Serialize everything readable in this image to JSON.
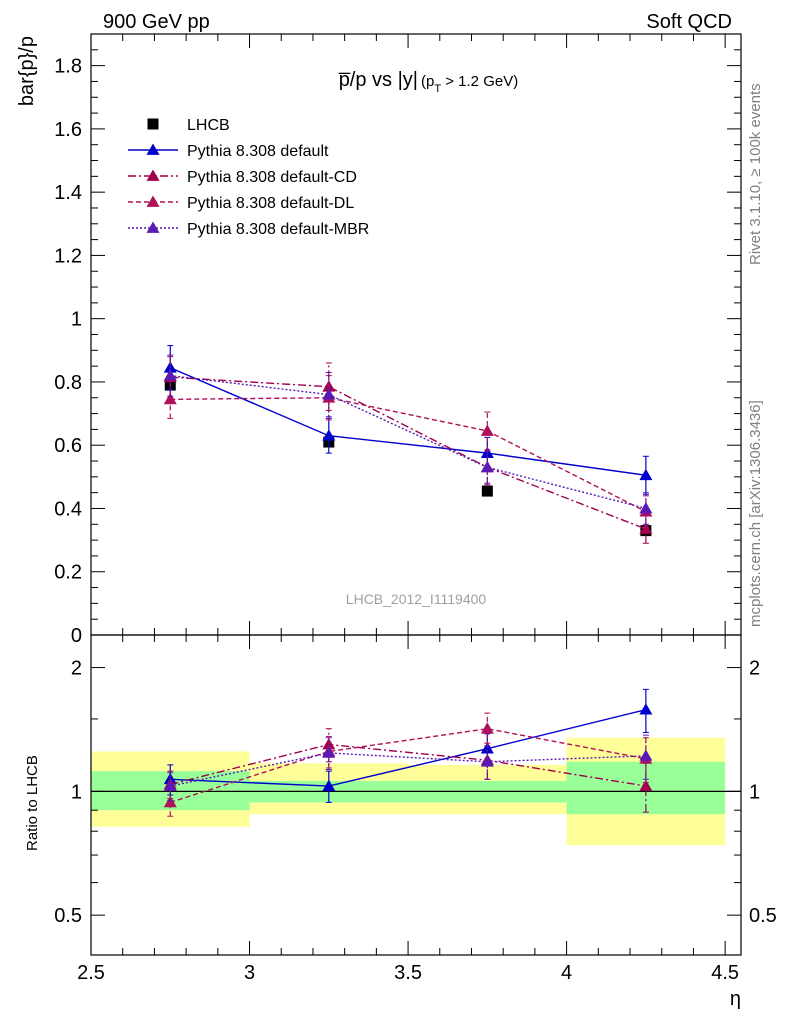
{
  "header": {
    "left": "900 GeV pp",
    "right": "Soft QCD",
    "side_top": "Rivet 3.1.10, ≥ 100k events",
    "side_bottom": "mcplots.cern.ch [arXiv:1306.3436]"
  },
  "chart_data": [
    {
      "type": "line",
      "title_main": "p̅/p vs |y|",
      "title_sub": "(p",
      "title_sub_index": "T",
      "title_sub_tail": " > 1.2 GeV)",
      "ylabel": "bar{p}/p",
      "watermark": "LHCB_2012_I1119400",
      "xlim": [
        2.5,
        4.55
      ],
      "ylim": [
        0,
        1.9
      ],
      "yticks": [
        0,
        0.2,
        0.4,
        0.6,
        0.8,
        1,
        1.2,
        1.4,
        1.6,
        1.8
      ],
      "ytick_labels": [
        "0",
        "0.2",
        "0.4",
        "0.6",
        "0.8",
        "1",
        "1.2",
        "1.4",
        "1.6",
        "1.8"
      ],
      "x": [
        2.75,
        3.25,
        3.75,
        4.25
      ],
      "series": [
        {
          "name": "LHCB",
          "marker": "square",
          "color": "#000000",
          "line": "none",
          "values": [
            0.79,
            0.61,
            0.455,
            0.33
          ],
          "err": [
            0.01,
            0.01,
            0.01,
            0.01
          ]
        },
        {
          "name": "Pythia 8.308 default",
          "marker": "triangle",
          "color": "#0000cc",
          "line": "solid",
          "values": [
            0.845,
            0.63,
            0.575,
            0.505
          ],
          "err": [
            0.07,
            0.055,
            0.05,
            0.06
          ]
        },
        {
          "name": "Pythia 8.308 default-CD",
          "marker": "triangle",
          "color": "#a0004e",
          "line": "dashdot",
          "values": [
            0.815,
            0.785,
            0.53,
            0.335
          ],
          "err": [
            0.065,
            0.075,
            0.055,
            0.045
          ]
        },
        {
          "name": "Pythia 8.308 default-DL",
          "marker": "triangle",
          "color": "#b0105a",
          "line": "dashed",
          "values": [
            0.745,
            0.75,
            0.645,
            0.39
          ],
          "err": [
            0.06,
            0.07,
            0.06,
            0.05
          ]
        },
        {
          "name": "Pythia 8.308 default-MBR",
          "marker": "triangle",
          "color": "#5a1ab4",
          "line": "dotted",
          "values": [
            0.82,
            0.76,
            0.53,
            0.4
          ],
          "err": [
            0.065,
            0.07,
            0.05,
            0.05
          ]
        }
      ]
    },
    {
      "type": "line",
      "ylabel": "Ratio to LHCB",
      "xlabel": "η",
      "log_y": true,
      "xlim": [
        2.5,
        4.55
      ],
      "ylim": [
        0.4,
        2.4
      ],
      "yticks": [
        0.5,
        1,
        2
      ],
      "ytick_labels": [
        "0.5",
        "1",
        "2"
      ],
      "xticks": [
        2.5,
        3,
        3.5,
        4,
        4.5
      ],
      "xtick_labels": [
        "2.5",
        "3",
        "3.5",
        "4",
        "4.5"
      ],
      "bands": [
        {
          "x0": 2.5,
          "x1": 3.0,
          "inner": [
            0.9,
            1.12
          ],
          "outer": [
            0.82,
            1.25
          ]
        },
        {
          "x0": 3.0,
          "x1": 3.5,
          "inner": [
            0.94,
            1.06
          ],
          "outer": [
            0.88,
            1.17
          ]
        },
        {
          "x0": 3.5,
          "x1": 4.0,
          "inner": [
            0.94,
            1.06
          ],
          "outer": [
            0.88,
            1.16
          ]
        },
        {
          "x0": 4.0,
          "x1": 4.5,
          "inner": [
            0.88,
            1.18
          ],
          "outer": [
            0.74,
            1.35
          ]
        }
      ],
      "x": [
        2.75,
        3.25,
        3.75,
        4.25
      ],
      "series": [
        {
          "name": "Pythia 8.308 default",
          "values": [
            1.07,
            1.03,
            1.27,
            1.58
          ],
          "err": [
            0.09,
            0.09,
            0.11,
            0.19
          ]
        },
        {
          "name": "Pythia 8.308 default-CD",
          "values": [
            1.04,
            1.3,
            1.19,
            1.03
          ],
          "err": [
            0.08,
            0.12,
            0.12,
            0.14
          ]
        },
        {
          "name": "Pythia 8.308 default-DL",
          "values": [
            0.94,
            1.25,
            1.42,
            1.2
          ],
          "err": [
            0.07,
            0.11,
            0.13,
            0.15
          ]
        },
        {
          "name": "Pythia 8.308 default-MBR",
          "values": [
            1.03,
            1.24,
            1.18,
            1.22
          ],
          "err": [
            0.08,
            0.11,
            0.11,
            0.15
          ]
        }
      ]
    }
  ]
}
